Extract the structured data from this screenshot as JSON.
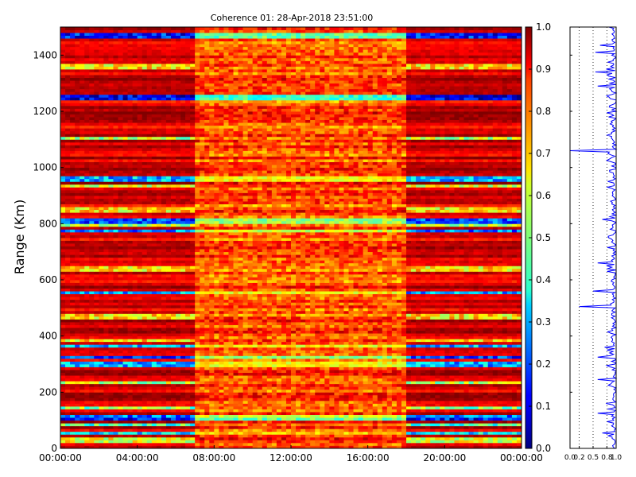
{
  "chart_data": [
    {
      "type": "heatmap",
      "title": "Coherence 01: 28-Apr-2018 23:51:00",
      "xlabel": "",
      "ylabel": "Range (Km)",
      "x_ticks": [
        "00:00:00",
        "04:00:00",
        "08:00:00",
        "12:00:00",
        "16:00:00",
        "20:00:00",
        "00:00:00"
      ],
      "x_range_hours": [
        0,
        24
      ],
      "y_ticks": [
        "0",
        "200",
        "400",
        "600",
        "800",
        "1000",
        "1200",
        "1400"
      ],
      "ylim": [
        0,
        1500
      ],
      "segments": [
        {
          "start_hour": 0,
          "end_hour": 7,
          "character": "deep red rows with periodic yellow/blue streaks"
        },
        {
          "start_hour": 7,
          "end_hour": 18,
          "character": "mixed red/orange/yellow, lower coherence bands"
        },
        {
          "start_hour": 18,
          "end_hour": 24,
          "character": "deep red rows with periodic yellow/blue streaks"
        }
      ],
      "low_coherence_bands_km": [
        {
          "range_km": 30,
          "level": 0.6
        },
        {
          "range_km": 55,
          "level": 0.35
        },
        {
          "range_km": 85,
          "level": 0.45
        },
        {
          "range_km": 105,
          "level": 0.15
        },
        {
          "range_km": 115,
          "level": 0.25
        },
        {
          "range_km": 145,
          "level": 0.5
        },
        {
          "range_km": 235,
          "level": 0.55
        },
        {
          "range_km": 300,
          "level": 0.3
        },
        {
          "range_km": 325,
          "level": 0.2
        },
        {
          "range_km": 365,
          "level": 0.3
        },
        {
          "range_km": 385,
          "level": 0.65
        },
        {
          "range_km": 470,
          "level": 0.65
        },
        {
          "range_km": 555,
          "level": 0.3
        },
        {
          "range_km": 640,
          "level": 0.65
        },
        {
          "range_km": 775,
          "level": 0.25
        },
        {
          "range_km": 795,
          "level": 0.55
        },
        {
          "range_km": 810,
          "level": 0.2
        },
        {
          "range_km": 850,
          "level": 0.65
        },
        {
          "range_km": 935,
          "level": 0.6
        },
        {
          "range_km": 960,
          "level": 0.3
        },
        {
          "range_km": 1105,
          "level": 0.55
        },
        {
          "range_km": 1250,
          "level": 0.1
        },
        {
          "range_km": 1360,
          "level": 0.65
        },
        {
          "range_km": 1470,
          "level": 0.15
        }
      ],
      "colorbar": {
        "min": 0.0,
        "max": 1.0,
        "ticks": [
          "0.0",
          "0.1",
          "0.2",
          "0.3",
          "0.4",
          "0.5",
          "0.6",
          "0.7",
          "0.8",
          "0.9",
          "1.0"
        ],
        "colormap": "jet"
      }
    },
    {
      "type": "line",
      "title": "",
      "orientation": "vertical profile",
      "x_ticks": [
        "0.0",
        "0.2",
        "0.5",
        "0.8",
        "1.0"
      ],
      "xlim": [
        0,
        1
      ],
      "ylim": [
        0,
        1500
      ],
      "series_color": "#0000ff",
      "dips": [
        {
          "range_km": 55,
          "value": 0.7
        },
        {
          "range_km": 125,
          "value": 0.6
        },
        {
          "range_km": 245,
          "value": 0.6
        },
        {
          "range_km": 325,
          "value": 0.6
        },
        {
          "range_km": 360,
          "value": 0.75
        },
        {
          "range_km": 505,
          "value": 0.2
        },
        {
          "range_km": 560,
          "value": 0.5
        },
        {
          "range_km": 660,
          "value": 0.6
        },
        {
          "range_km": 815,
          "value": 0.7
        },
        {
          "range_km": 1060,
          "value": 0.0
        },
        {
          "range_km": 1290,
          "value": 0.6
        },
        {
          "range_km": 1340,
          "value": 0.55
        },
        {
          "range_km": 1410,
          "value": 0.55
        },
        {
          "range_km": 1435,
          "value": 0.65
        }
      ],
      "reference_lines": [
        0.2,
        0.5,
        0.8
      ]
    }
  ]
}
